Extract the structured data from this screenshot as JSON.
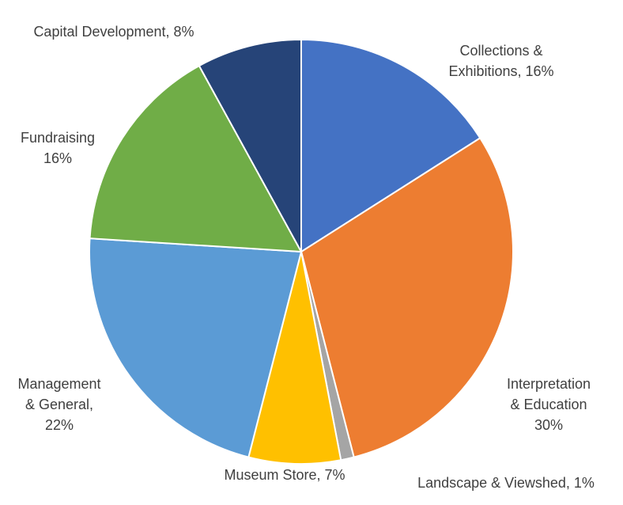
{
  "chart_data": {
    "type": "pie",
    "title": "",
    "start_angle_deg": 0,
    "direction": "clockwise",
    "slices": [
      {
        "name": "Collections & Exhibitions",
        "value": 16,
        "color": "#4472C4",
        "label_lines": [
          "Collections &",
          "Exhibitions, 16%"
        ]
      },
      {
        "name": "Interpretation & Education",
        "value": 30,
        "color": "#ED7D31",
        "label_lines": [
          "Interpretation",
          "& Education",
          "30%"
        ]
      },
      {
        "name": "Landscape & Viewshed",
        "value": 1,
        "color": "#A5A5A5",
        "label_lines": [
          "Landscape & Viewshed, 1%"
        ]
      },
      {
        "name": "Museum Store",
        "value": 7,
        "color": "#FFC000",
        "label_lines": [
          "Museum Store, 7%"
        ]
      },
      {
        "name": "Management & General",
        "value": 22,
        "color": "#5B9BD5",
        "label_lines": [
          "Management",
          "& General,",
          "22%"
        ]
      },
      {
        "name": "Fundraising",
        "value": 16,
        "color": "#70AD47",
        "label_lines": [
          "Fundraising",
          "16%"
        ]
      },
      {
        "name": "Capital Development",
        "value": 8,
        "color": "#264478",
        "label_lines": [
          "Capital Development, 8%"
        ]
      }
    ]
  }
}
